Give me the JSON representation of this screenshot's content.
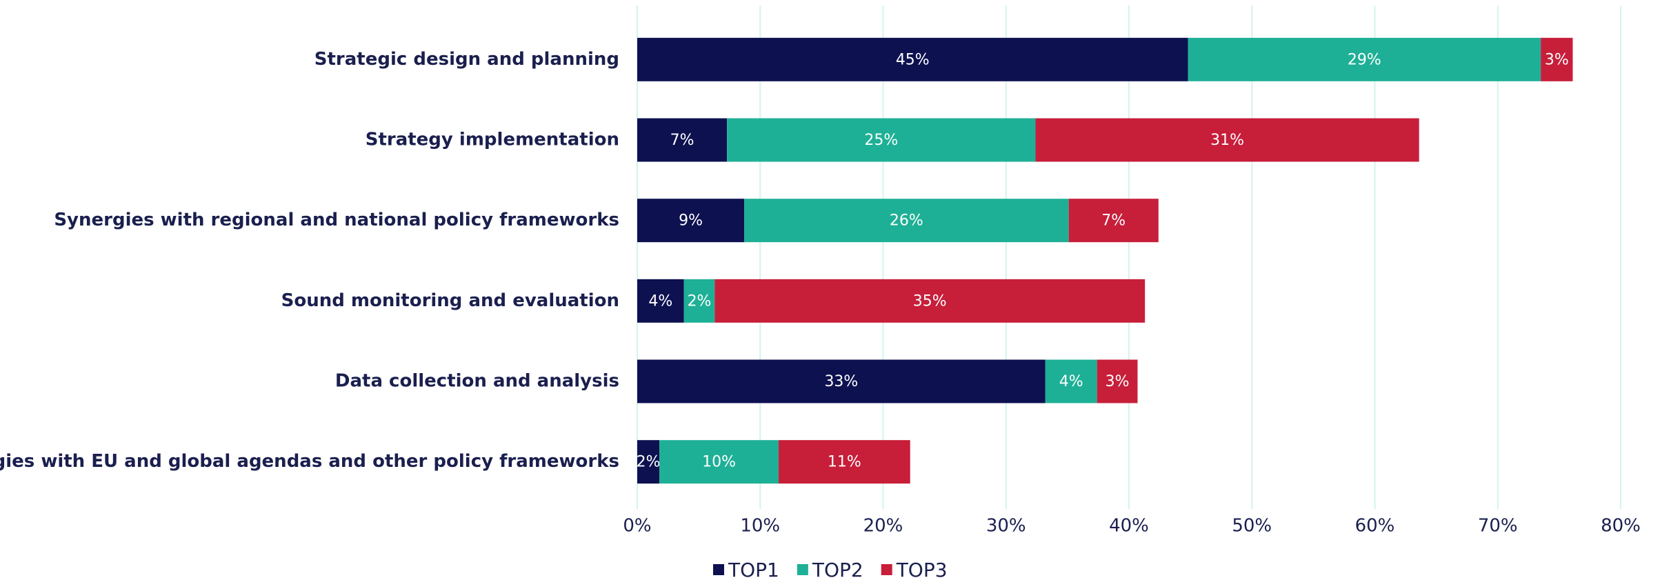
{
  "chart_data": {
    "type": "stacked-barh",
    "categories": [
      "Strategic design and planning",
      "Strategy implementation",
      "Synergies with regional and national policy frameworks",
      "Sound monitoring and evaluation",
      "Data collection and analysis",
      "Synergies with EU and global agendas and other policy frameworks"
    ],
    "series": [
      {
        "name": "TOP1",
        "color": "#0d1150",
        "values": [
          44.8,
          7.3,
          8.7,
          3.8,
          33.2,
          1.8
        ],
        "value_labels": [
          "45%",
          "7%",
          "9%",
          "4%",
          "33%",
          "2%"
        ]
      },
      {
        "name": "TOP2",
        "color": "#1eb096",
        "values": [
          28.7,
          25.1,
          26.4,
          2.5,
          4.2,
          9.7
        ],
        "value_labels": [
          "29%",
          "25%",
          "26%",
          "2%",
          "4%",
          "10%"
        ]
      },
      {
        "name": "TOP3",
        "color": "#c71e3a",
        "values": [
          2.6,
          31.2,
          7.3,
          35.0,
          3.3,
          10.7
        ],
        "value_labels": [
          "3%",
          "31%",
          "7%",
          "35%",
          "3%",
          "11%"
        ]
      }
    ],
    "xlim": [
      0,
      80
    ],
    "xticks": [
      {
        "value": 0,
        "label": "0%"
      },
      {
        "value": 10,
        "label": "10%"
      },
      {
        "value": 20,
        "label": "20%"
      },
      {
        "value": 30,
        "label": "30%"
      },
      {
        "value": 40,
        "label": "40%"
      },
      {
        "value": 50,
        "label": "50%"
      },
      {
        "value": 60,
        "label": "60%"
      },
      {
        "value": 70,
        "label": "70%"
      },
      {
        "value": 80,
        "label": "80%"
      }
    ],
    "grid": true,
    "legend": "bottom"
  }
}
